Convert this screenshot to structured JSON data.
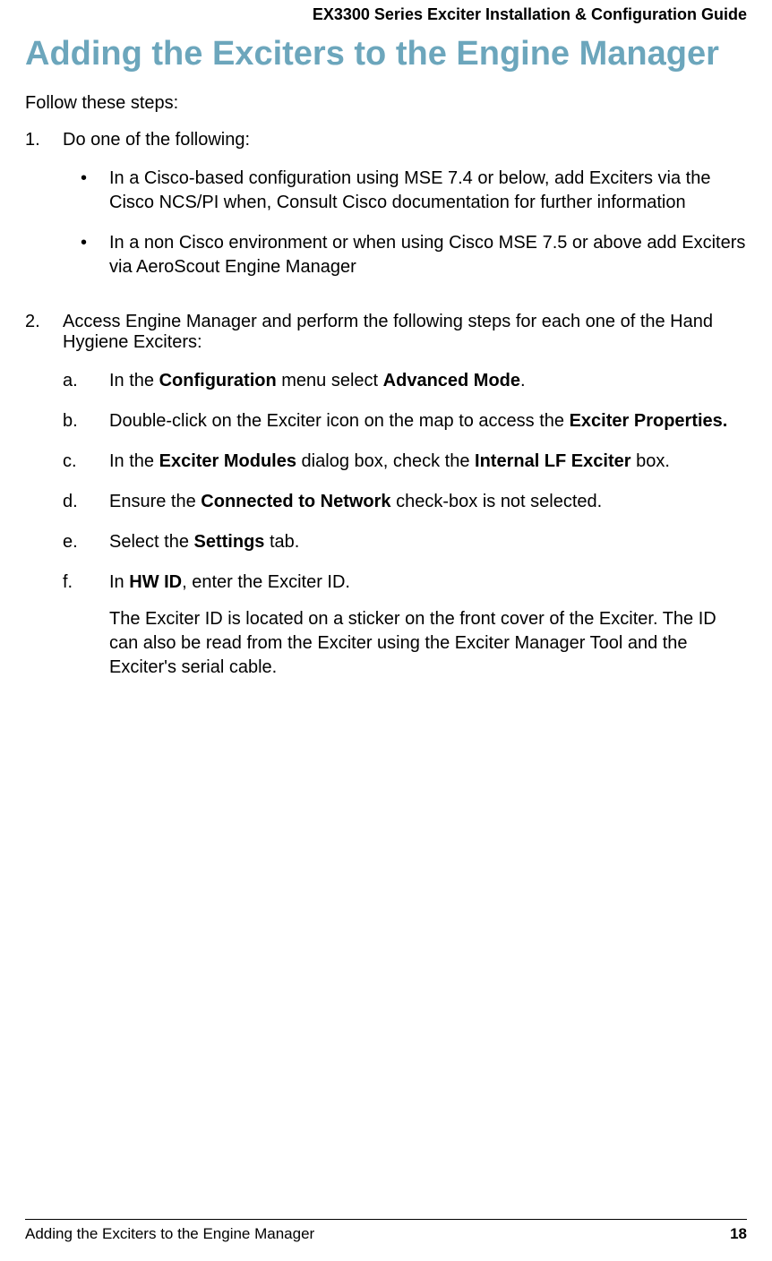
{
  "header": {
    "title": "EX3300 Series Exciter Installation & Configuration Guide"
  },
  "heading": "Adding the Exciters to the Engine Manager",
  "intro": "Follow these steps:",
  "steps": {
    "s1": {
      "marker": "1.",
      "text": "Do one of the following:",
      "bullets": {
        "b1": {
          "marker": "•",
          "text": "In a Cisco-based configuration using MSE 7.4 or below, add Exciters via the Cisco NCS/PI when, Consult Cisco documentation for further information"
        },
        "b2": {
          "marker": "•",
          "text": "In a non Cisco environment or when using Cisco MSE 7.5 or above add Exciters via AeroScout Engine Manager"
        }
      }
    },
    "s2": {
      "marker": "2.",
      "text": "Access Engine Manager and perform the following steps for each one of the Hand Hygiene Exciters:",
      "letters": {
        "a": {
          "marker": "a.",
          "pre": "In the ",
          "bold1": "Configuration",
          "mid": " menu select ",
          "bold2": "Advanced Mode",
          "post": "."
        },
        "b": {
          "marker": "b.",
          "pre": "Double-click on the Exciter icon on the map to access the ",
          "bold1": "Exciter Properties."
        },
        "c": {
          "marker": "c.",
          "pre": "In the ",
          "bold1": "Exciter Modules",
          "mid": " dialog box, check the ",
          "bold2": "Internal LF Exciter",
          "post": " box."
        },
        "d": {
          "marker": "d.",
          "pre": "Ensure the ",
          "bold1": "Connected to Network",
          "post": " check-box is not selected."
        },
        "e": {
          "marker": "e.",
          "pre": "Select the ",
          "bold1": "Settings",
          "post": " tab."
        },
        "f": {
          "marker": "f.",
          "pre": "In ",
          "bold1": "HW ID",
          "post": ", enter the Exciter ID.",
          "sub": "The Exciter ID is located on a sticker on the front cover of the Exciter. The ID can also be read from the Exciter using the Exciter Manager Tool and the Exciter's serial cable."
        }
      }
    }
  },
  "footer": {
    "section": "Adding the Exciters to the Engine Manager",
    "page": "18"
  },
  "colors": {
    "heading_color": "#6ca6bc",
    "text_color": "#000000",
    "background_color": "#ffffff"
  },
  "typography": {
    "header_fontsize": 18,
    "heading_fontsize": 38,
    "body_fontsize": 20,
    "footer_fontsize": 17,
    "font_family": "Segoe UI"
  }
}
